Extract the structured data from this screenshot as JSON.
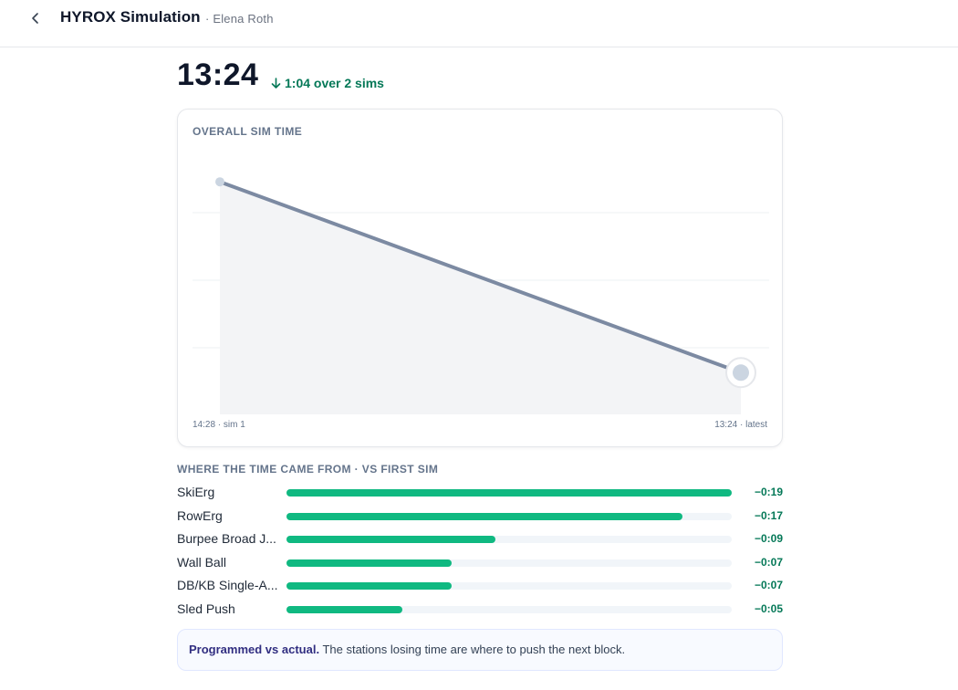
{
  "header": {
    "title": "HYROX Simulation",
    "subtitle": "· Elena Roth"
  },
  "hero": {
    "time": "13:24",
    "delta": "1:04 over 2 sims"
  },
  "card": {
    "title": "OVERALL SIM TIME",
    "start_label": "14:28 · sim 1",
    "end_label": "13:24 · latest"
  },
  "chart_data": {
    "type": "area",
    "title": "OVERALL SIM TIME",
    "x": [
      "sim 1",
      "latest"
    ],
    "series": [
      {
        "values": [
          868,
          804
        ],
        "display": [
          "14:28",
          "13:24"
        ]
      }
    ],
    "y_unit": "seconds",
    "grid": true,
    "colors": {
      "line": "#7c8aa2",
      "fill": "#f3f4f6",
      "point": "#cbd5e1"
    }
  },
  "breakdown": {
    "title": "WHERE THE TIME CAME FROM · VS FIRST SIM",
    "rows": [
      {
        "label": "SkiErg",
        "value": "−0:19",
        "fraction": 1.0
      },
      {
        "label": "RowErg",
        "value": "−0:17",
        "fraction": 0.89
      },
      {
        "label": "Burpee Broad J...",
        "value": "−0:09",
        "fraction": 0.47
      },
      {
        "label": "Wall Ball",
        "value": "−0:07",
        "fraction": 0.37
      },
      {
        "label": "DB/KB Single-A...",
        "value": "−0:07",
        "fraction": 0.37
      },
      {
        "label": "Sled Push",
        "value": "−0:05",
        "fraction": 0.26
      }
    ],
    "bar_color": "#10b981",
    "value_color": "#047857"
  },
  "note": {
    "strong": "Programmed vs actual.",
    "text": " The stations losing time are where to push the next block."
  },
  "icons": {
    "back": "chevron-left-icon",
    "delta": "arrow-down-icon"
  }
}
